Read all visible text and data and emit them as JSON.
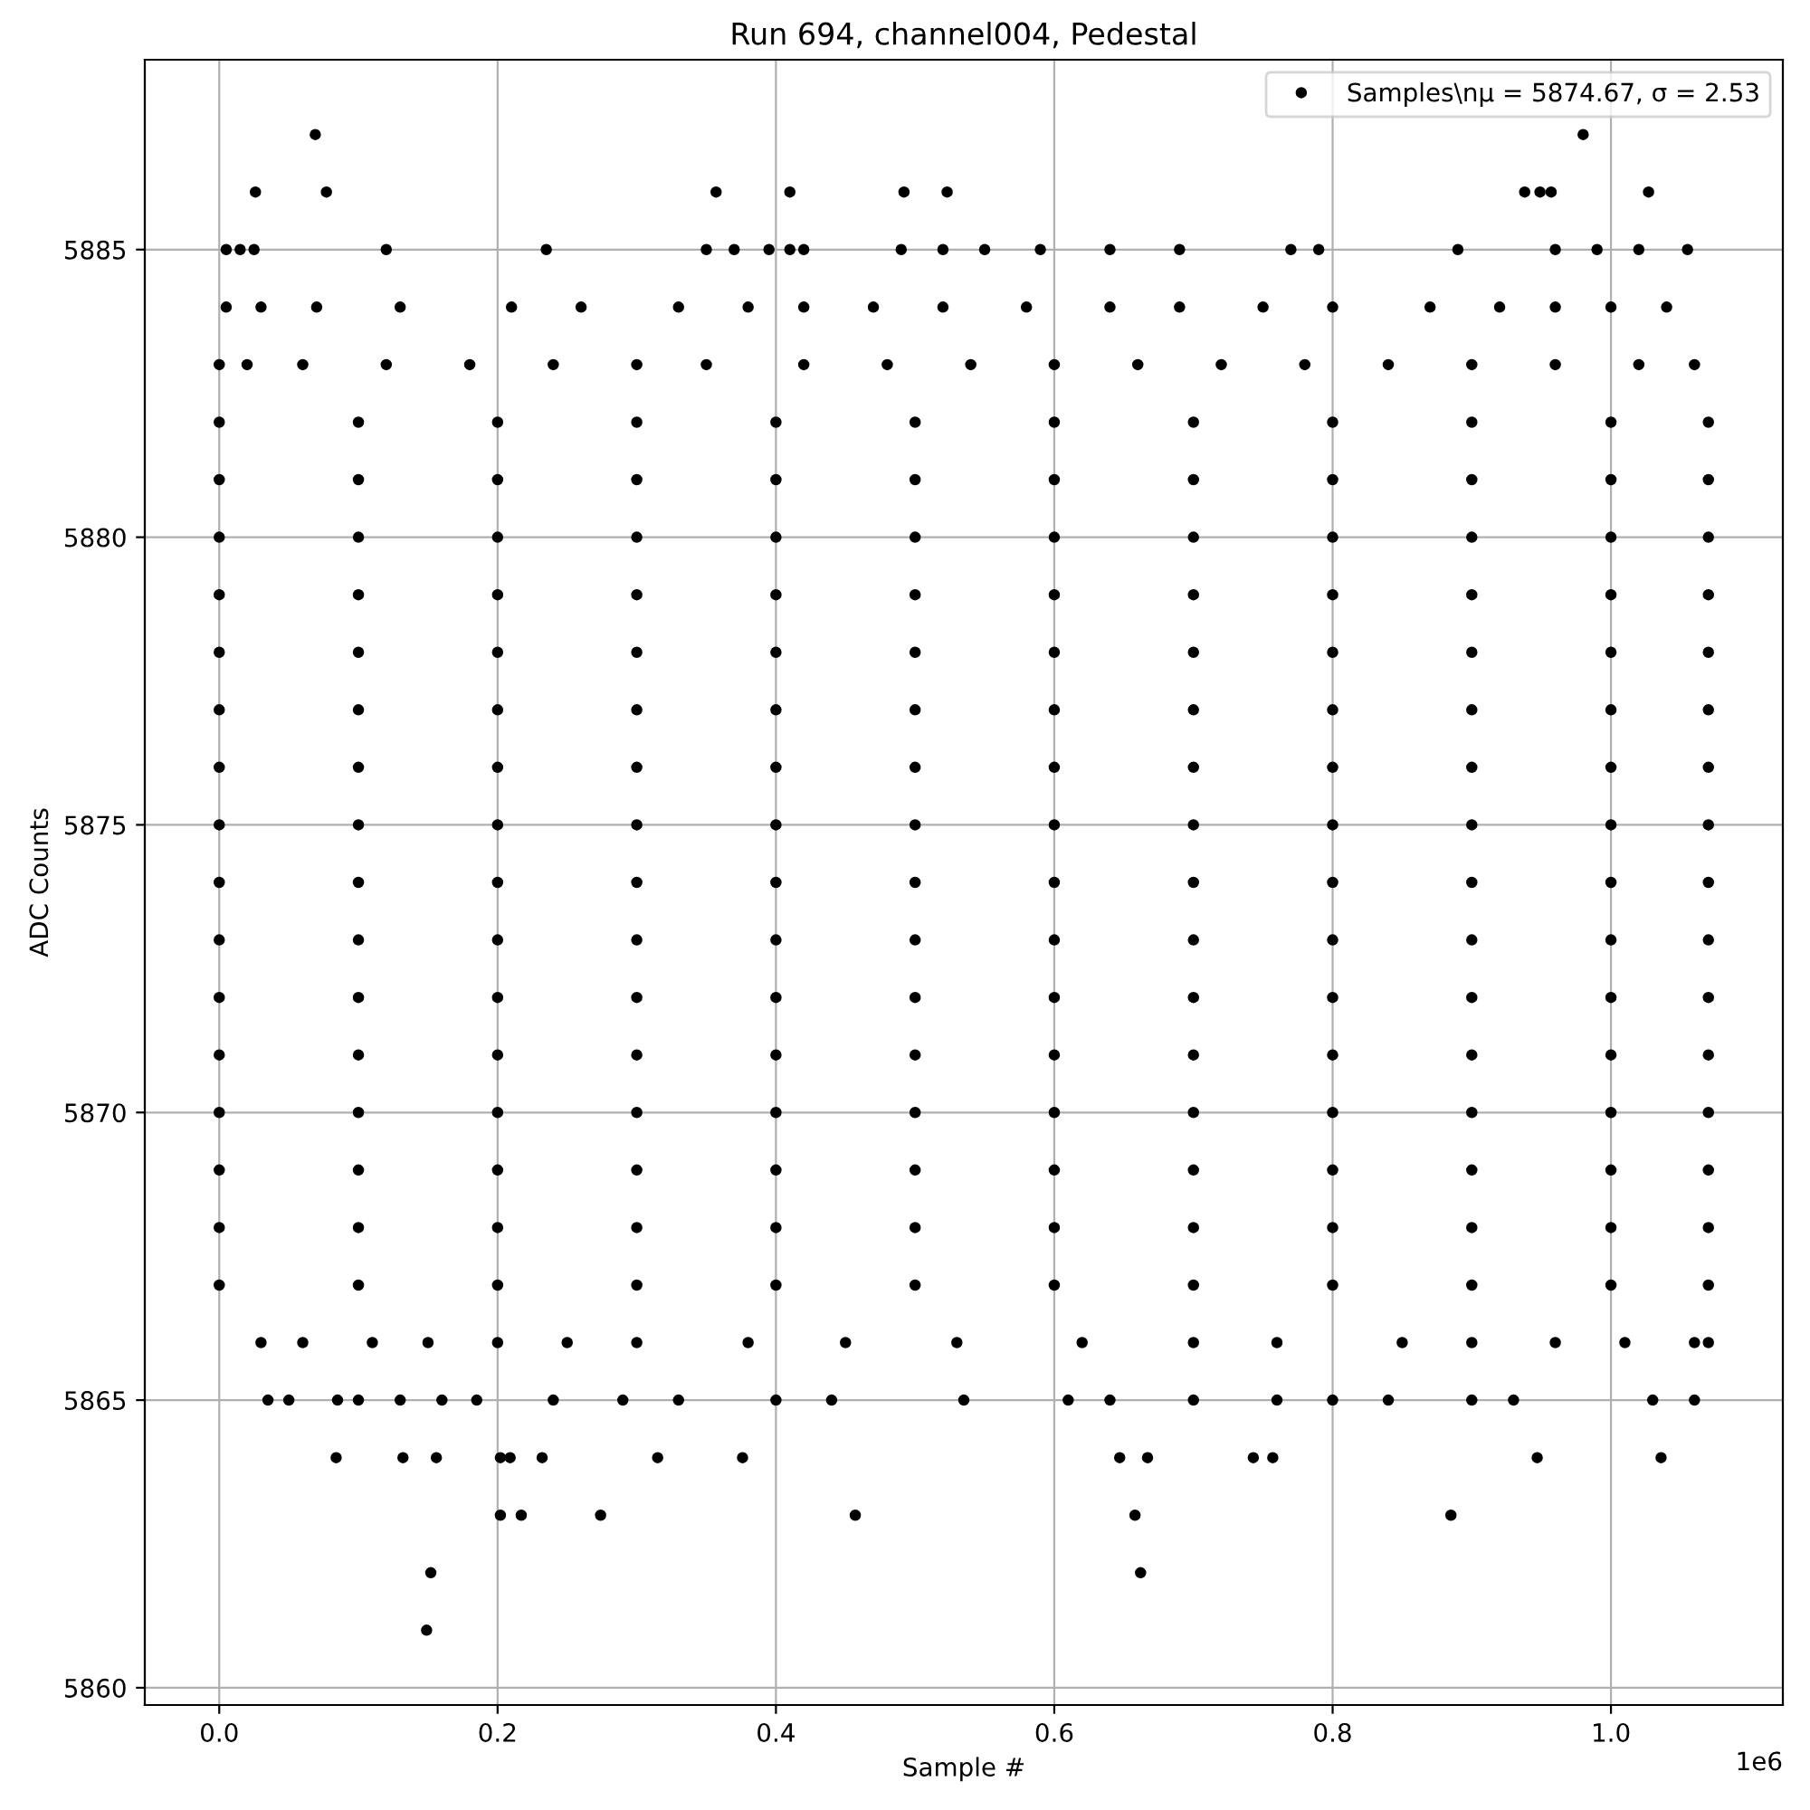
{
  "chart_data": {
    "type": "scatter",
    "title": "Run 694, channel004, Pedestal",
    "xlabel": "Sample #",
    "ylabel": "ADC Counts",
    "xlim": [
      -0.0535,
      1.1235
    ],
    "ylim": [
      5859.7,
      5888.3
    ],
    "xticks": [
      {
        "value": 0,
        "label": "0.0"
      },
      0.2,
      0.4,
      0.6,
      0.8,
      {
        "value": 1,
        "label": "1.0"
      }
    ],
    "yticks": [
      5860,
      5865,
      5870,
      5875,
      5880,
      5885
    ],
    "grid": true,
    "legend": "top right",
    "marker": "circle",
    "annotations": [
      "1e6"
    ],
    "series": [
      {
        "name": "Samples\\nμ = 5874.67, σ = 2.53",
        "color": "#000000",
        "x": [
          0.149,
          0.152,
          0.662,
          0.202,
          0.217,
          0.274,
          0.457,
          0.658,
          0.885,
          0.084,
          0.132,
          0.156,
          0.202,
          0.209,
          0.232,
          0.315,
          0.376,
          0.647,
          0.667,
          0.743,
          0.757,
          0.947,
          1.036,
          0.035,
          0.05,
          0.085,
          0.1,
          0.13,
          0.16,
          0.185,
          0.24,
          0.29,
          0.33,
          0.4,
          0.44,
          0.535,
          0.61,
          0.64,
          0.7,
          0.76,
          0.8,
          0.84,
          0.9,
          0.93,
          1.03,
          1.06,
          0.03,
          0.06,
          0.11,
          0.15,
          0.2,
          0.25,
          0.3,
          0.38,
          0.45,
          0.53,
          0.62,
          0.7,
          0.76,
          0.85,
          0.9,
          0.96,
          1.01,
          1.06,
          1.07,
          0,
          0.1,
          0.2,
          0.3,
          0.4,
          0.5,
          0.6,
          0.7,
          0.8,
          0.9,
          1.0,
          1.07,
          0,
          0.1,
          0.2,
          0.3,
          0.4,
          0.5,
          0.6,
          0.7,
          0.8,
          0.9,
          1.0,
          1.07,
          0,
          0.1,
          0.2,
          0.3,
          0.4,
          0.5,
          0.6,
          0.7,
          0.8,
          0.9,
          1.0,
          1.07,
          0,
          0.1,
          0.2,
          0.3,
          0.4,
          0.5,
          0.6,
          0.7,
          0.8,
          0.9,
          1.0,
          1.07,
          0,
          0.1,
          0.2,
          0.3,
          0.4,
          0.5,
          0.6,
          0.7,
          0.8,
          0.9,
          1.0,
          1.07,
          0,
          0.1,
          0.2,
          0.3,
          0.4,
          0.5,
          0.6,
          0.7,
          0.8,
          0.9,
          1.0,
          1.07,
          0,
          0.1,
          0.2,
          0.3,
          0.4,
          0.5,
          0.6,
          0.7,
          0.8,
          0.9,
          1.0,
          1.07,
          0,
          0.1,
          0.2,
          0.3,
          0.4,
          0.5,
          0.6,
          0.7,
          0.8,
          0.9,
          1.0,
          1.07,
          0,
          0.1,
          0.2,
          0.3,
          0.4,
          0.5,
          0.6,
          0.7,
          0.8,
          0.9,
          1.0,
          1.07,
          0,
          0.1,
          0.2,
          0.3,
          0.4,
          0.5,
          0.6,
          0.7,
          0.8,
          0.9,
          1.0,
          1.07,
          0,
          0.1,
          0.2,
          0.3,
          0.4,
          0.5,
          0.6,
          0.7,
          0.8,
          0.9,
          1.0,
          1.07,
          0,
          0.1,
          0.2,
          0.3,
          0.4,
          0.5,
          0.6,
          0.7,
          0.8,
          0.9,
          1.0,
          1.07,
          0,
          0.1,
          0.2,
          0.3,
          0.4,
          0.5,
          0.6,
          0.7,
          0.8,
          0.9,
          1.0,
          1.07,
          0,
          0.1,
          0.2,
          0.3,
          0.4,
          0.5,
          0.6,
          0.7,
          0.8,
          0.9,
          1.0,
          1.07,
          0,
          0.1,
          0.2,
          0.3,
          0.4,
          0.5,
          0.6,
          0.7,
          0.8,
          0.9,
          1.0,
          1.07,
          0,
          0.1,
          0.2,
          0.3,
          0.4,
          0.5,
          0.6,
          0.7,
          0.8,
          0.9,
          1.0,
          1.07,
          0,
          0.02,
          0.06,
          0.12,
          0.18,
          0.24,
          0.3,
          0.35,
          0.42,
          0.48,
          0.54,
          0.6,
          0.66,
          0.72,
          0.78,
          0.84,
          0.9,
          0.96,
          1.02,
          1.06,
          0.005,
          0.03,
          0.07,
          0.13,
          0.21,
          0.26,
          0.33,
          0.38,
          0.42,
          0.47,
          0.52,
          0.58,
          0.64,
          0.69,
          0.75,
          0.8,
          0.87,
          0.92,
          0.96,
          1.0,
          1.04,
          0.005,
          0.015,
          0.025,
          0.12,
          0.235,
          0.35,
          0.37,
          0.395,
          0.41,
          0.42,
          0.49,
          0.52,
          0.55,
          0.59,
          0.64,
          0.69,
          0.77,
          0.79,
          0.89,
          0.96,
          0.99,
          1.02,
          1.055,
          0.026,
          0.077,
          0.357,
          0.41,
          0.492,
          0.523,
          0.938,
          0.949,
          0.957,
          1.027,
          0.069,
          0.98
        ],
        "values": [
          5861,
          5862,
          5862,
          5863,
          5863,
          5863,
          5863,
          5863,
          5863,
          5864,
          5864,
          5864,
          5864,
          5864,
          5864,
          5864,
          5864,
          5864,
          5864,
          5864,
          5864,
          5864,
          5864,
          5865,
          5865,
          5865,
          5865,
          5865,
          5865,
          5865,
          5865,
          5865,
          5865,
          5865,
          5865,
          5865,
          5865,
          5865,
          5865,
          5865,
          5865,
          5865,
          5865,
          5865,
          5865,
          5865,
          5866,
          5866,
          5866,
          5866,
          5866,
          5866,
          5866,
          5866,
          5866,
          5866,
          5866,
          5866,
          5866,
          5866,
          5866,
          5866,
          5866,
          5866,
          5866,
          5867,
          5867,
          5867,
          5867,
          5867,
          5867,
          5867,
          5867,
          5867,
          5867,
          5867,
          5867,
          5868,
          5868,
          5868,
          5868,
          5868,
          5868,
          5868,
          5868,
          5868,
          5868,
          5868,
          5868,
          5869,
          5869,
          5869,
          5869,
          5869,
          5869,
          5869,
          5869,
          5869,
          5869,
          5869,
          5869,
          5870,
          5870,
          5870,
          5870,
          5870,
          5870,
          5870,
          5870,
          5870,
          5870,
          5870,
          5870,
          5871,
          5871,
          5871,
          5871,
          5871,
          5871,
          5871,
          5871,
          5871,
          5871,
          5871,
          5871,
          5872,
          5872,
          5872,
          5872,
          5872,
          5872,
          5872,
          5872,
          5872,
          5872,
          5872,
          5872,
          5873,
          5873,
          5873,
          5873,
          5873,
          5873,
          5873,
          5873,
          5873,
          5873,
          5873,
          5873,
          5874,
          5874,
          5874,
          5874,
          5874,
          5874,
          5874,
          5874,
          5874,
          5874,
          5874,
          5874,
          5875,
          5875,
          5875,
          5875,
          5875,
          5875,
          5875,
          5875,
          5875,
          5875,
          5875,
          5875,
          5876,
          5876,
          5876,
          5876,
          5876,
          5876,
          5876,
          5876,
          5876,
          5876,
          5876,
          5876,
          5877,
          5877,
          5877,
          5877,
          5877,
          5877,
          5877,
          5877,
          5877,
          5877,
          5877,
          5877,
          5878,
          5878,
          5878,
          5878,
          5878,
          5878,
          5878,
          5878,
          5878,
          5878,
          5878,
          5878,
          5879,
          5879,
          5879,
          5879,
          5879,
          5879,
          5879,
          5879,
          5879,
          5879,
          5879,
          5879,
          5880,
          5880,
          5880,
          5880,
          5880,
          5880,
          5880,
          5880,
          5880,
          5880,
          5880,
          5880,
          5881,
          5881,
          5881,
          5881,
          5881,
          5881,
          5881,
          5881,
          5881,
          5881,
          5881,
          5881,
          5882,
          5882,
          5882,
          5882,
          5882,
          5882,
          5882,
          5882,
          5882,
          5882,
          5882,
          5882,
          5883,
          5883,
          5883,
          5883,
          5883,
          5883,
          5883,
          5883,
          5883,
          5883,
          5883,
          5883,
          5883,
          5883,
          5883,
          5883,
          5883,
          5883,
          5883,
          5883,
          5884,
          5884,
          5884,
          5884,
          5884,
          5884,
          5884,
          5884,
          5884,
          5884,
          5884,
          5884,
          5884,
          5884,
          5884,
          5884,
          5884,
          5884,
          5884,
          5884,
          5884,
          5885,
          5885,
          5885,
          5885,
          5885,
          5885,
          5885,
          5885,
          5885,
          5885,
          5885,
          5885,
          5885,
          5885,
          5885,
          5885,
          5885,
          5885,
          5885,
          5885,
          5885,
          5885,
          5885,
          5886,
          5886,
          5886,
          5886,
          5886,
          5886,
          5886,
          5886,
          5886,
          5886,
          5887,
          5887
        ]
      }
    ]
  }
}
